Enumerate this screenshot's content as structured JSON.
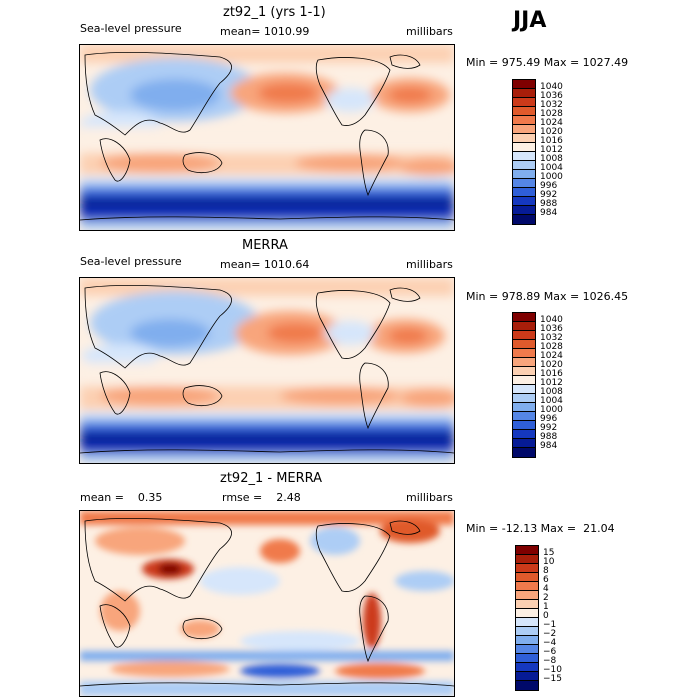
{
  "season": "JJA",
  "panels": [
    {
      "title": "zt92_1 (yrs 1-1)",
      "left_label": "Sea-level pressure",
      "mean_label": "mean= 1010.99",
      "units": "millibars",
      "minmax": "Min = 975.49 Max = 1027.49"
    },
    {
      "title": "MERRA",
      "left_label": "Sea-level pressure",
      "mean_label": "mean= 1010.64",
      "units": "millibars",
      "minmax": "Min = 978.89 Max = 1026.45"
    },
    {
      "title": "zt92_1 - MERRA",
      "mean_label": "mean =    0.35",
      "rmse_label": "rmse =    2.48",
      "units": "millibars",
      "minmax": "Min = -12.13 Max =  21.04"
    }
  ],
  "chart_data": [
    {
      "type": "heatmap",
      "title": "zt92_1 (yrs 1-1)",
      "variable": "Sea-level pressure",
      "units": "millibars",
      "mean": 1010.99,
      "min": 975.49,
      "max": 1027.49,
      "levels": [
        "1040",
        "1036",
        "1032",
        "1028",
        "1024",
        "1020",
        "1016",
        "1012",
        "1008",
        "1004",
        "1000",
        "996",
        "992",
        "988",
        "984"
      ],
      "colors": [
        "#7f0000",
        "#a81e0a",
        "#cc3a1a",
        "#e05a2c",
        "#f07a4c",
        "#f8a57c",
        "#fcd0b2",
        "#fdf0e4",
        "#d6e6fb",
        "#adcdf5",
        "#80aeee",
        "#5586e6",
        "#2f5fd8",
        "#1538bf",
        "#061b96",
        "#00096a"
      ]
    },
    {
      "type": "heatmap",
      "title": "MERRA",
      "variable": "Sea-level pressure",
      "units": "millibars",
      "mean": 1010.64,
      "min": 978.89,
      "max": 1026.45,
      "levels": [
        "1040",
        "1036",
        "1032",
        "1028",
        "1024",
        "1020",
        "1016",
        "1012",
        "1008",
        "1004",
        "1000",
        "996",
        "992",
        "988",
        "984"
      ],
      "colors": [
        "#7f0000",
        "#a81e0a",
        "#cc3a1a",
        "#e05a2c",
        "#f07a4c",
        "#f8a57c",
        "#fcd0b2",
        "#fdf0e4",
        "#d6e6fb",
        "#adcdf5",
        "#80aeee",
        "#5586e6",
        "#2f5fd8",
        "#1538bf",
        "#061b96",
        "#00096a"
      ]
    },
    {
      "type": "heatmap",
      "title": "zt92_1 - MERRA",
      "units": "millibars",
      "mean": 0.35,
      "rmse": 2.48,
      "min": -12.13,
      "max": 21.04,
      "levels": [
        "15",
        "10",
        "8",
        "6",
        "4",
        "2",
        "1",
        "0",
        "−1",
        "−2",
        "−4",
        "−6",
        "−8",
        "−10",
        "−15"
      ],
      "colors": [
        "#7f0000",
        "#a81e0a",
        "#cc3a1a",
        "#e05a2c",
        "#f07a4c",
        "#f8a57c",
        "#fcd0b2",
        "#fdf0e4",
        "#d6e6fb",
        "#adcdf5",
        "#80aeee",
        "#5586e6",
        "#2f5fd8",
        "#1538bf",
        "#061b96",
        "#00096a"
      ]
    }
  ]
}
